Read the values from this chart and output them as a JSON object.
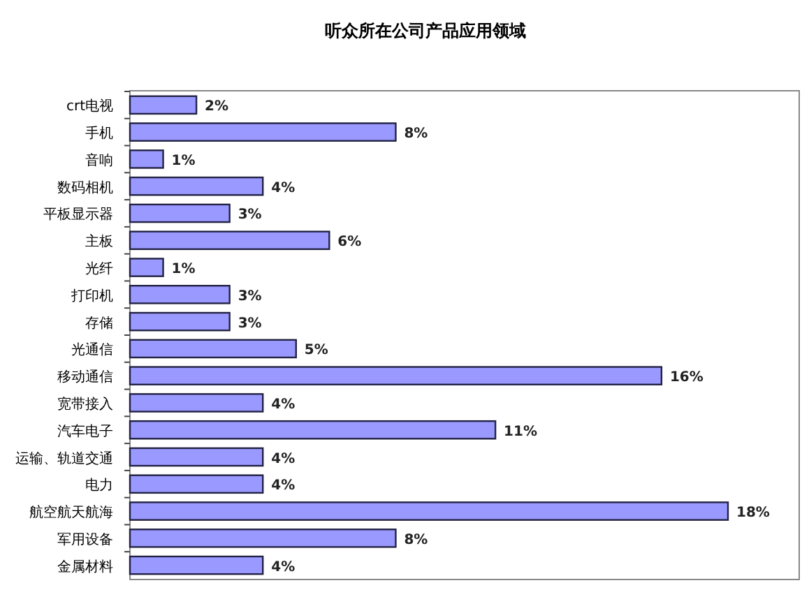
{
  "chart_data": {
    "type": "bar",
    "orientation": "horizontal",
    "title": "听众所在公司产品应用领域",
    "categories": [
      "crt电视",
      "手机",
      "音响",
      "数码相机",
      "平板显示器",
      "主板",
      "光纤",
      "打印机",
      "存储",
      "光通信",
      "移动通信",
      "宽带接入",
      "汽车电子",
      "运输、轨道交通",
      "电力",
      "航空航天航海",
      "军用设备",
      "金属材料"
    ],
    "values": [
      2,
      8,
      1,
      4,
      3,
      6,
      1,
      3,
      3,
      5,
      16,
      4,
      11,
      4,
      4,
      18,
      8,
      4
    ],
    "value_labels": [
      "2%",
      "8%",
      "1%",
      "4%",
      "3%",
      "6%",
      "1%",
      "3%",
      "3%",
      "5%",
      "16%",
      "4%",
      "11%",
      "4%",
      "4%",
      "18%",
      "8%",
      "4%"
    ],
    "color": "#9999ff"
  }
}
